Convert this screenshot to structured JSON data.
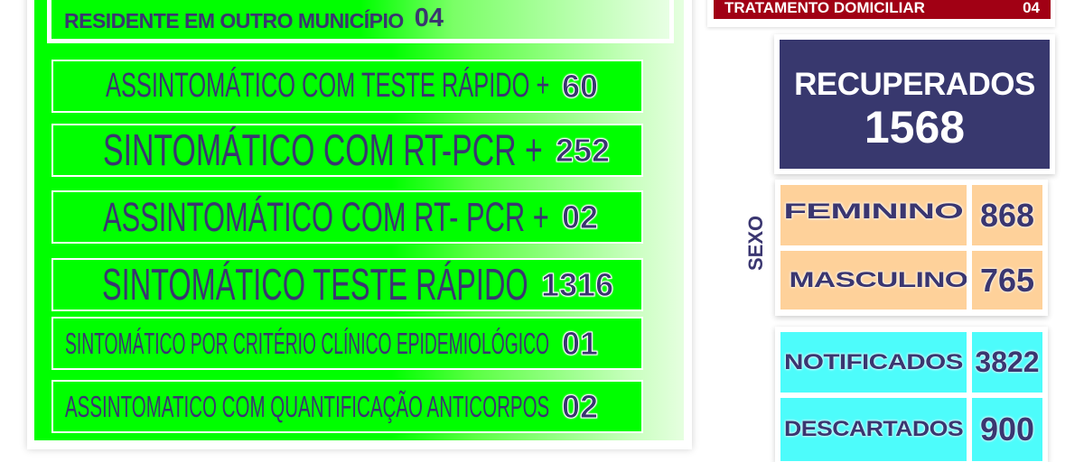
{
  "left_panel": {
    "resident_other_municipality": {
      "label": "RESIDENTE EM OUTRO MUNICÍPIO",
      "value": "04"
    },
    "rows": [
      {
        "label": "ASSINTOMÁTICO COM TESTE RÁPIDO +",
        "value": "60"
      },
      {
        "label": "SINTOMÁTICO COM  RT-PCR  +",
        "value": "252"
      },
      {
        "label": "ASSINTOMÁTICO COM RT- PCR +",
        "value": "02"
      },
      {
        "label": "SINTOMÁTICO TESTE RÁPIDO",
        "value": "1316"
      },
      {
        "label": "SINTOMÁTICO POR CRITÉRIO CLÍNICO EPIDEMIOLÓGICO",
        "value": "01"
      },
      {
        "label": "ASSINTOMATICO COM QUANTIFICAÇÃO ANTICORPOS",
        "value": "02"
      }
    ]
  },
  "home_treatment": {
    "label": "TRATAMENTO DOMICILIAR",
    "value": "04"
  },
  "recovered": {
    "label": "RECUPERADOS",
    "value": "1568"
  },
  "sex": {
    "title": "SEXO",
    "female": {
      "label": "FEMININO",
      "value": "868"
    },
    "male": {
      "label": "MASCULINO",
      "value": "765"
    }
  },
  "notified": {
    "label": "NOTIFICADOS",
    "value": "3822"
  },
  "discarded": {
    "label": "DESCARTADOS",
    "value": "900"
  },
  "colors": {
    "navy": "#38386e",
    "green": "#00ff00",
    "red": "#a10014",
    "peach": "#fed19a",
    "cyan": "#4dfcfb"
  }
}
